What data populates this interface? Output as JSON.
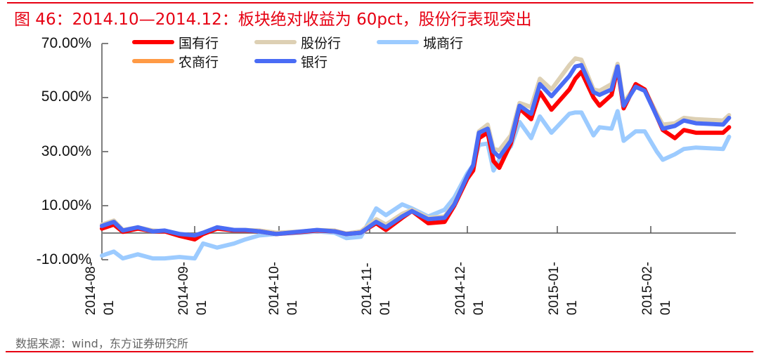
{
  "figure": {
    "title": "图 46：2014.10—2014.12：板块绝对收益为 60pct，股份行表现突出",
    "source": "数据来源：wind，东方证券研究所",
    "accent_color": "#e60012"
  },
  "legend": [
    {
      "label": "国有行",
      "color": "#ff0000"
    },
    {
      "label": "股份行",
      "color": "#ddd0b4"
    },
    {
      "label": "城商行",
      "color": "#9ccbff"
    },
    {
      "label": "农商行",
      "color": "#ff9a45"
    },
    {
      "label": "银行",
      "color": "#4a6cf5"
    }
  ],
  "y_axis": {
    "ticks": [
      "70.00%",
      "50.00%",
      "30.00%",
      "10.00%",
      "-10.00%"
    ]
  },
  "x_axis": {
    "ticks": [
      {
        "line1": "2014-08-",
        "line2": "01"
      },
      {
        "line1": "2014-09-",
        "line2": "01"
      },
      {
        "line1": "2014-10-",
        "line2": "01"
      },
      {
        "line1": "2014-11-",
        "line2": "01"
      },
      {
        "line1": "2014-12-",
        "line2": "01"
      },
      {
        "line1": "2015-01-",
        "line2": "01"
      },
      {
        "line1": "2015-02-",
        "line2": "01"
      }
    ]
  },
  "chart_data": {
    "type": "line",
    "title": "2014.10—2014.12：板块绝对收益为 60pct，股份行表现突出",
    "xlabel": "",
    "ylabel": "",
    "ylim": [
      -10,
      70
    ],
    "yticks": [
      70,
      50,
      30,
      10,
      -10
    ],
    "ytick_labels": [
      "70.00%",
      "50.00%",
      "30.00%",
      "10.00%",
      "-10.00%"
    ],
    "xtick_labels": [
      "2014-08-01",
      "2014-09-01",
      "2014-10-01",
      "2014-11-01",
      "2014-12-01",
      "2015-01-01",
      "2015-02-01"
    ],
    "grid": false,
    "legend_position": "top",
    "x": [
      "2014-08-01",
      "2014-08-05",
      "2014-08-08",
      "2014-08-13",
      "2014-08-18",
      "2014-08-22",
      "2014-08-27",
      "2014-09-01",
      "2014-09-04",
      "2014-09-09",
      "2014-09-15",
      "2014-09-19",
      "2014-09-24",
      "2014-09-30",
      "2014-10-09",
      "2014-10-14",
      "2014-10-20",
      "2014-10-24",
      "2014-10-29",
      "2014-11-03",
      "2014-11-06",
      "2014-11-11",
      "2014-11-14",
      "2014-11-19",
      "2014-11-24",
      "2014-11-27",
      "2014-12-01",
      "2014-12-03",
      "2014-12-05",
      "2014-12-08",
      "2014-12-10",
      "2014-12-12",
      "2014-12-16",
      "2014-12-19",
      "2014-12-23",
      "2014-12-26",
      "2014-12-30",
      "2015-01-05",
      "2015-01-07",
      "2015-01-09",
      "2015-01-13",
      "2015-01-15",
      "2015-01-19",
      "2015-01-21",
      "2015-01-23",
      "2015-01-27",
      "2015-01-30",
      "2015-02-03",
      "2015-02-05",
      "2015-02-09",
      "2015-02-12",
      "2015-02-16",
      "2015-02-25",
      "2015-02-27"
    ],
    "series": [
      {
        "name": "国有行",
        "color": "#ff0000",
        "values": [
          1.5,
          3.0,
          0.3,
          1.5,
          0.5,
          0.5,
          -1.2,
          -2.5,
          -0.5,
          1.5,
          0.8,
          0.8,
          0.5,
          -0.5,
          0.3,
          0.8,
          0.5,
          -0.5,
          0.0,
          3.5,
          1.0,
          5.5,
          8.0,
          3.5,
          4.0,
          10.0,
          20.0,
          23.0,
          35.0,
          37.0,
          26.5,
          24.0,
          33.0,
          46.0,
          42.0,
          52.0,
          45.5,
          53.0,
          57.0,
          59.5,
          50.0,
          47.0,
          51.0,
          61.0,
          46.0,
          55.0,
          53.0,
          43.0,
          38.0,
          35.0,
          38.0,
          37.0,
          37.0,
          39.0
        ]
      },
      {
        "name": "股份行",
        "color": "#ddd0b4",
        "values": [
          3.0,
          4.5,
          1.0,
          2.0,
          0.8,
          0.5,
          -0.5,
          -1.0,
          0.0,
          2.0,
          1.0,
          1.0,
          0.8,
          0.0,
          0.5,
          1.0,
          0.8,
          -0.3,
          0.5,
          5.0,
          3.0,
          7.0,
          8.5,
          5.5,
          6.0,
          11.0,
          21.0,
          25.0,
          37.5,
          40.0,
          31.0,
          30.5,
          36.0,
          48.0,
          46.5,
          57.0,
          53.0,
          62.0,
          64.5,
          64.0,
          53.0,
          52.5,
          55.0,
          62.5,
          48.0,
          54.5,
          53.0,
          44.0,
          40.0,
          40.5,
          42.5,
          42.0,
          41.5,
          43.5
        ]
      },
      {
        "name": "城商行",
        "color": "#9ccbff",
        "values": [
          -8.5,
          -7.0,
          -9.5,
          -8.0,
          -9.5,
          -9.5,
          -9.0,
          -9.5,
          -4.0,
          -5.5,
          -4.0,
          -2.5,
          -1.0,
          -0.5,
          0.0,
          0.5,
          0.0,
          -2.0,
          -1.5,
          9.0,
          6.5,
          10.5,
          9.0,
          6.0,
          8.5,
          13.0,
          22.0,
          25.0,
          32.5,
          33.0,
          23.0,
          27.0,
          32.0,
          41.0,
          35.0,
          43.0,
          37.0,
          44.0,
          44.5,
          44.5,
          36.0,
          39.0,
          38.5,
          45.0,
          34.0,
          37.5,
          37.5,
          30.0,
          27.0,
          29.0,
          31.0,
          31.5,
          31.0,
          35.5
        ]
      },
      {
        "name": "农商行",
        "color": "#ff9a45",
        "values": []
      },
      {
        "name": "银行",
        "color": "#4a6cf5",
        "values": [
          2.5,
          4.0,
          0.8,
          2.0,
          0.5,
          0.8,
          -0.5,
          -1.0,
          0.0,
          2.0,
          1.0,
          1.0,
          0.5,
          -0.5,
          0.5,
          1.0,
          0.5,
          -0.5,
          0.0,
          4.0,
          2.0,
          6.0,
          8.0,
          5.0,
          5.5,
          10.5,
          21.0,
          25.0,
          37.0,
          38.5,
          30.0,
          28.0,
          34.0,
          47.0,
          44.0,
          55.0,
          50.5,
          58.0,
          61.5,
          62.0,
          52.0,
          51.0,
          53.0,
          61.5,
          47.0,
          54.0,
          52.5,
          43.0,
          38.5,
          39.5,
          41.5,
          40.5,
          40.0,
          42.5
        ]
      }
    ]
  }
}
